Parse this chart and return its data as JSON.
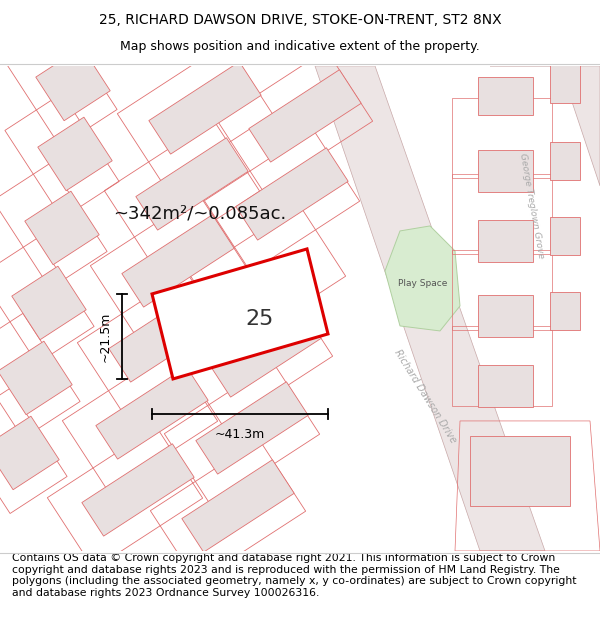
{
  "title_line1": "25, RICHARD DAWSON DRIVE, STOKE-ON-TRENT, ST2 8NX",
  "title_line2": "Map shows position and indicative extent of the property.",
  "footer_text": "Contains OS data © Crown copyright and database right 2021. This information is subject to Crown copyright and database rights 2023 and is reproduced with the permission of HM Land Registry. The polygons (including the associated geometry, namely x, y co-ordinates) are subject to Crown copyright and database rights 2023 Ordnance Survey 100026316.",
  "area_label": "~342m²/~0.085ac.",
  "number_label": "25",
  "width_label": "~41.3m",
  "height_label": "~21.5m",
  "road_label": "Richard Dawson Drive",
  "road2_label": "George Treglown Grove",
  "play_space_label": "Play Space",
  "bg_color": "#ffffff",
  "map_bg": "#ffffff",
  "building_fill": "#e8e0e0",
  "building_edge": "#e07070",
  "plot_edge": "#e07070",
  "highlight_edge": "#dd0000",
  "green_fill": "#d8ecd0",
  "green_edge": "#b0d0a0",
  "road_fill": "#e0d8d8",
  "road_edge": "#d0b0b0",
  "dim_color": "#000000",
  "text_color": "#333333",
  "label_color": "#aaaaaa",
  "title_fontsize": 10,
  "subtitle_fontsize": 9,
  "footer_fontsize": 7.8,
  "area_fontsize": 13,
  "number_fontsize": 16,
  "dim_fontsize": 9,
  "road_fontsize": 7,
  "gtg_fontsize": 6.5
}
